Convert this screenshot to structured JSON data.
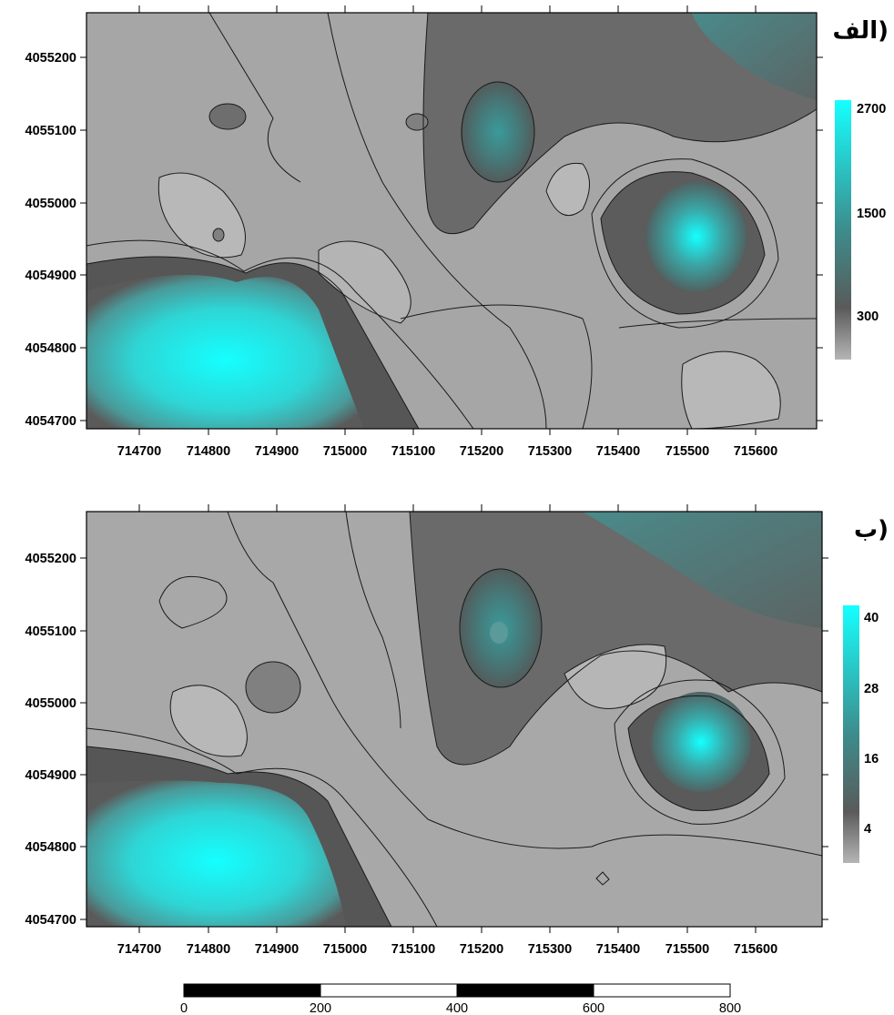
{
  "panels": [
    {
      "id": "alef",
      "label": "الف)",
      "x_ticks": [
        "714700",
        "714800",
        "714900",
        "715000",
        "715100",
        "715200",
        "715300",
        "715400",
        "715500",
        "715600"
      ],
      "y_ticks": [
        "4055200",
        "4055100",
        "4055000",
        "4054900",
        "4054800",
        "4054700"
      ],
      "legend": {
        "labels": [
          "2700",
          "1500",
          "300"
        ],
        "min_color": "#b5b5b5",
        "max_color": "#15ffff"
      }
    },
    {
      "id": "be",
      "label": "ب)",
      "x_ticks": [
        "714700",
        "714800",
        "714900",
        "715000",
        "715100",
        "715200",
        "715300",
        "715400",
        "715500",
        "715600"
      ],
      "y_ticks": [
        "4055200",
        "4055100",
        "4055000",
        "4054900",
        "4054800",
        "4054700"
      ],
      "legend": {
        "labels": [
          "40",
          "28",
          "16",
          "4"
        ],
        "min_color": "#b5b5b5",
        "max_color": "#15ffff"
      }
    }
  ],
  "scale_bar": {
    "labels": [
      "0",
      "200",
      "400",
      "600",
      "800"
    ]
  },
  "colors": {
    "low": "#b4b4b4",
    "mid_dark": "#5a5a5a",
    "teal": "#3c9a9a",
    "high": "#15ffff"
  }
}
